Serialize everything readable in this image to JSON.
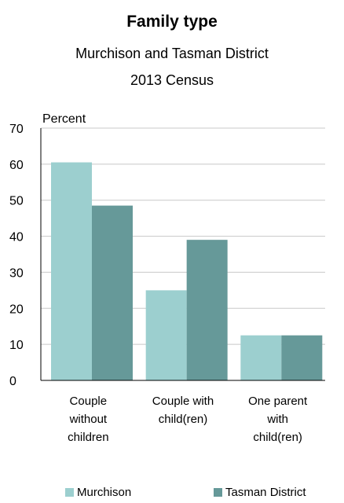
{
  "chart_data": {
    "type": "bar",
    "title": "Family type",
    "subtitle": "Murchison and Tasman District",
    "subtitle2": "2013 Census",
    "ylabel": "Percent",
    "xlabel": "",
    "ylim": [
      0,
      70
    ],
    "yticks": [
      "0",
      "10",
      "20",
      "30",
      "40",
      "50",
      "60",
      "70"
    ],
    "categories": [
      [
        "Couple",
        "without",
        "children"
      ],
      [
        "Couple with",
        "child(ren)"
      ],
      [
        "One parent",
        "with",
        "child(ren)"
      ]
    ],
    "series": [
      {
        "name": "Murchison",
        "color": "#9ccfcf",
        "values": [
          60.5,
          25,
          12.5
        ]
      },
      {
        "name": "Tasman District",
        "color": "#669999",
        "values": [
          48.5,
          39,
          12.5
        ]
      }
    ],
    "grid": true,
    "legend": "bottom"
  }
}
